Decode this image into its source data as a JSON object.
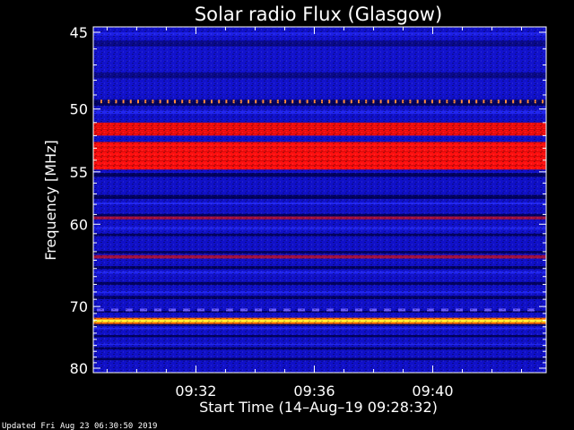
{
  "chart_data": {
    "type": "heatmap",
    "title": "Solar radio Flux (Glasgow)",
    "ylabel": "Frequency [MHz]",
    "xlabel": "Start Time (14–Aug–19 09:28:32)",
    "y_scale": "reciprocal",
    "ylim": [
      45,
      80
    ],
    "y_ticks": [
      45,
      50,
      55,
      60,
      70,
      80
    ],
    "y_tick_labels": [
      "45",
      "50",
      "55",
      "60",
      "70",
      "80"
    ],
    "xlim": [
      "09:28:32",
      "09:43:50"
    ],
    "x_ticks": [
      "09:32",
      "09:36",
      "09:40"
    ],
    "x_tick_labels": [
      "09:32",
      "09:36",
      "09:40"
    ],
    "grid": false,
    "background_color": "#000000",
    "colors": {
      "background_band": "#1010c8",
      "dark_band": "#000050",
      "red_band": "#ff1010",
      "magenta_band": "#a01040",
      "yellow_line": "#ffee33"
    },
    "bands": [
      {
        "freq_from": 45.0,
        "freq_to": 49.0,
        "level": "low"
      },
      {
        "freq_from": 49.4,
        "freq_to": 49.6,
        "level": "spiky"
      },
      {
        "freq_from": 51.0,
        "freq_to": 52.0,
        "level": "high"
      },
      {
        "freq_from": 52.5,
        "freq_to": 54.8,
        "level": "high"
      },
      {
        "freq_from": 59.2,
        "freq_to": 59.5,
        "level": "medium"
      },
      {
        "freq_from": 63.4,
        "freq_to": 63.8,
        "level": "medium"
      },
      {
        "freq_from": 70.3,
        "freq_to": 70.6,
        "level": "dashed"
      },
      {
        "freq_from": 71.9,
        "freq_to": 72.3,
        "level": "peak"
      }
    ]
  },
  "footer": {
    "updated": "Updated Fri Aug 23 06:30:50 2019"
  }
}
